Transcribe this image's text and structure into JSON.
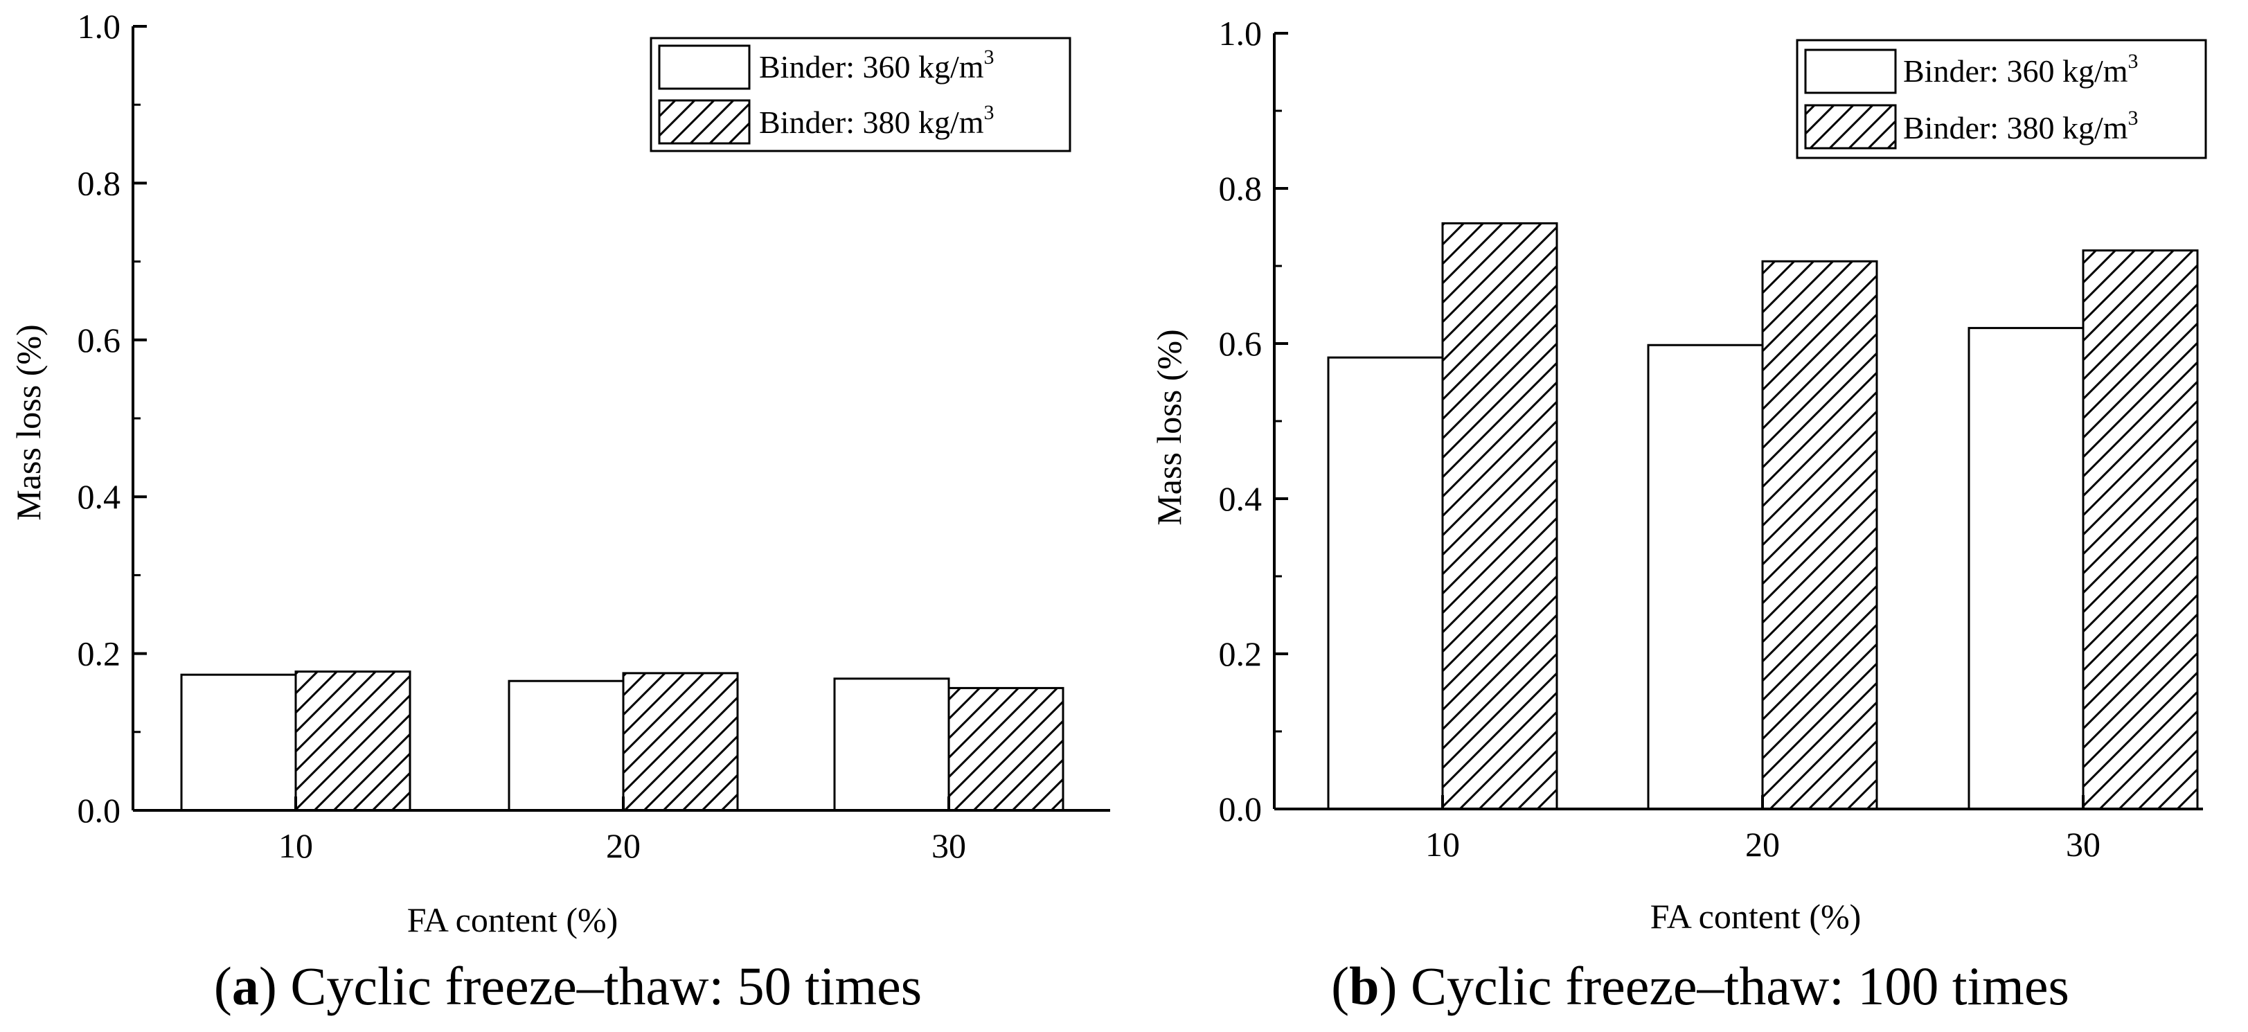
{
  "chart_data": [
    {
      "type": "bar",
      "panel_label": "a",
      "caption": "Cyclic freeze–thaw: 50 times",
      "categories": [
        "10",
        "20",
        "30"
      ],
      "series": [
        {
          "name": "Binder: 360 kg/m",
          "unit_superscript": "3",
          "pattern": "none",
          "values": [
            0.173,
            0.165,
            0.168
          ]
        },
        {
          "name": "Binder: 380 kg/m",
          "unit_superscript": "3",
          "pattern": "hatch",
          "values": [
            0.177,
            0.175,
            0.156
          ]
        }
      ],
      "xlabel": "FA content (%)",
      "ylabel": "Mass loss (%)",
      "ylim": [
        0,
        1.0
      ],
      "yticks": [
        "0.0",
        "0.2",
        "0.4",
        "0.6",
        "0.8",
        "1.0"
      ],
      "legend_position": "top-right",
      "grid": false
    },
    {
      "type": "bar",
      "panel_label": "b",
      "caption": "Cyclic freeze–thaw: 100 times",
      "categories": [
        "10",
        "20",
        "30"
      ],
      "series": [
        {
          "name": "Binder: 360 kg/m",
          "unit_superscript": "3",
          "pattern": "none",
          "values": [
            0.582,
            0.598,
            0.62
          ]
        },
        {
          "name": "Binder: 380 kg/m",
          "unit_superscript": "3",
          "pattern": "hatch",
          "values": [
            0.755,
            0.706,
            0.72
          ]
        }
      ],
      "xlabel": "FA content (%)",
      "ylabel": "Mass loss (%)",
      "ylim": [
        0,
        1.0
      ],
      "yticks": [
        "0.0",
        "0.2",
        "0.4",
        "0.6",
        "0.8",
        "1.0"
      ],
      "legend_position": "top-right",
      "grid": false
    }
  ]
}
